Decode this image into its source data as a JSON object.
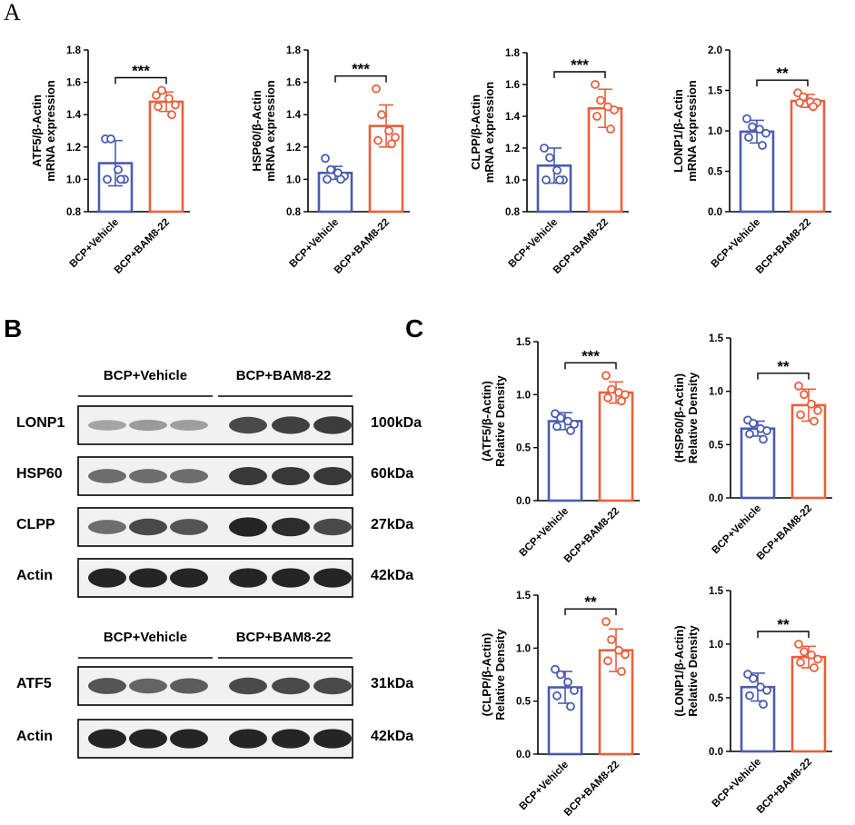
{
  "panels": {
    "a": "A",
    "b": "B",
    "c": "C"
  },
  "colors": {
    "vehicle": "#4a5bb0",
    "treatment": "#e8603c",
    "axis": "#000000",
    "blot_bg": "#f1f1f1",
    "band": "#1c1c1c"
  },
  "blot": {
    "groups": [
      "BCP+Vehicle",
      "BCP+BAM8-22"
    ],
    "section1": [
      {
        "label": "LONP1",
        "size": "100kDa",
        "vehicle": [
          0.25,
          0.3,
          0.28
        ],
        "treatment": [
          0.75,
          0.8,
          0.82
        ]
      },
      {
        "label": "HSP60",
        "size": "60kDa",
        "vehicle": [
          0.55,
          0.55,
          0.55
        ],
        "treatment": [
          0.85,
          0.85,
          0.85
        ]
      },
      {
        "label": "CLPP",
        "size": "27kDa",
        "vehicle": [
          0.55,
          0.75,
          0.7
        ],
        "treatment": [
          0.95,
          0.9,
          0.75
        ]
      },
      {
        "label": "Actin",
        "size": "42kDa",
        "vehicle": [
          0.95,
          0.95,
          0.95
        ],
        "treatment": [
          0.95,
          0.95,
          0.95
        ]
      }
    ],
    "section2": [
      {
        "label": "ATF5",
        "size": "31kDa",
        "vehicle": [
          0.7,
          0.6,
          0.65
        ],
        "treatment": [
          0.75,
          0.75,
          0.75
        ]
      },
      {
        "label": "Actin",
        "size": "42kDa",
        "vehicle": [
          0.95,
          0.95,
          0.95
        ],
        "treatment": [
          0.95,
          0.95,
          0.95
        ]
      }
    ]
  },
  "chart_data": [
    {
      "type": "bar",
      "title": "",
      "ylabel": [
        "ATF5/β-Actin",
        "mRNA expression"
      ],
      "categories": [
        "BCP+Vehicle",
        "BCP+BAM8-22"
      ],
      "ylim": [
        0.8,
        1.8
      ],
      "yticks": [
        0.8,
        1.0,
        1.2,
        1.4,
        1.6,
        1.8
      ],
      "tick_format": "1",
      "means": [
        1.1,
        1.48
      ],
      "errors": [
        0.14,
        0.06
      ],
      "points": [
        [
          1.25,
          1.25,
          1.06,
          1.0,
          1.0,
          1.0
        ],
        [
          1.52,
          1.55,
          1.5,
          1.46,
          1.45,
          1.4
        ]
      ],
      "significance": "***"
    },
    {
      "type": "bar",
      "title": "",
      "ylabel": [
        "HSP60/β-Actin",
        "mRNA expression"
      ],
      "categories": [
        "BCP+Vehicle",
        "BCP+BAM8-22"
      ],
      "ylim": [
        0.8,
        1.8
      ],
      "yticks": [
        0.8,
        1.0,
        1.2,
        1.4,
        1.6,
        1.8
      ],
      "tick_format": "1",
      "means": [
        1.04,
        1.33
      ],
      "errors": [
        0.04,
        0.13
      ],
      "points": [
        [
          1.13,
          1.06,
          1.04,
          1.02,
          1.0,
          1.0
        ],
        [
          1.56,
          1.4,
          1.3,
          1.26,
          1.24,
          1.22
        ]
      ],
      "significance": "***"
    },
    {
      "type": "bar",
      "title": "",
      "ylabel": [
        "CLPP/β-Actin",
        "mRNA expression"
      ],
      "categories": [
        "BCP+Vehicle",
        "BCP+BAM8-22"
      ],
      "ylim": [
        0.8,
        1.8
      ],
      "yticks": [
        0.8,
        1.0,
        1.2,
        1.4,
        1.6,
        1.8
      ],
      "tick_format": "1",
      "means": [
        1.09,
        1.45
      ],
      "errors": [
        0.11,
        0.12
      ],
      "points": [
        [
          1.2,
          1.14,
          1.06,
          1.0,
          1.0,
          1.0
        ],
        [
          1.6,
          1.5,
          1.46,
          1.44,
          1.4,
          1.32
        ]
      ],
      "significance": "***"
    },
    {
      "type": "bar",
      "title": "",
      "ylabel": [
        "LONP1/β-Actin",
        "mRNA expression"
      ],
      "categories": [
        "BCP+Vehicle",
        "BCP+BAM8-22"
      ],
      "ylim": [
        0.0,
        2.0
      ],
      "yticks": [
        0.0,
        0.5,
        1.0,
        1.5,
        2.0
      ],
      "tick_format": "1",
      "means": [
        0.99,
        1.37
      ],
      "errors": [
        0.14,
        0.08
      ],
      "points": [
        [
          1.15,
          1.05,
          1.02,
          0.97,
          0.92,
          0.82
        ],
        [
          1.47,
          1.42,
          1.36,
          1.35,
          1.35,
          1.3
        ]
      ],
      "significance": "**"
    },
    {
      "type": "bar",
      "title": "",
      "ylabel": [
        "(ATF5/β-Actin)",
        "Relative Density"
      ],
      "categories": [
        "BCP+Vehicle",
        "BCP+BAM8-22"
      ],
      "ylim": [
        0.0,
        1.5
      ],
      "yticks": [
        0.0,
        0.5,
        1.0,
        1.5
      ],
      "tick_format": "1",
      "means": [
        0.75,
        1.02
      ],
      "errors": [
        0.08,
        0.1
      ],
      "points": [
        [
          0.82,
          0.78,
          0.75,
          0.72,
          0.7,
          0.66
        ],
        [
          1.18,
          1.05,
          1.02,
          1.0,
          0.97,
          0.94
        ]
      ],
      "significance": "***"
    },
    {
      "type": "bar",
      "title": "",
      "ylabel": [
        "(HSP60/β-Actin)",
        "Relative Density"
      ],
      "categories": [
        "BCP+Vehicle",
        "BCP+BAM8-22"
      ],
      "ylim": [
        0.0,
        1.5
      ],
      "yticks": [
        0.0,
        0.5,
        1.0,
        1.5
      ],
      "tick_format": "1",
      "means": [
        0.65,
        0.87
      ],
      "errors": [
        0.07,
        0.15
      ],
      "points": [
        [
          0.73,
          0.7,
          0.65,
          0.63,
          0.6,
          0.55
        ],
        [
          1.05,
          0.97,
          0.88,
          0.82,
          0.78,
          0.72
        ]
      ],
      "significance": "**"
    },
    {
      "type": "bar",
      "title": "",
      "ylabel": [
        "(CLPP/β-Actin)",
        "Relative Density"
      ],
      "categories": [
        "BCP+Vehicle",
        "BCP+BAM8-22"
      ],
      "ylim": [
        0.0,
        1.5
      ],
      "yticks": [
        0.0,
        0.5,
        1.0,
        1.5
      ],
      "tick_format": "1",
      "means": [
        0.63,
        0.98
      ],
      "errors": [
        0.15,
        0.2
      ],
      "points": [
        [
          0.8,
          0.75,
          0.68,
          0.6,
          0.55,
          0.45
        ],
        [
          1.25,
          1.08,
          0.98,
          0.94,
          0.88,
          0.78
        ]
      ],
      "significance": "**"
    },
    {
      "type": "bar",
      "title": "",
      "ylabel": [
        "(LONP1/β-Actin)",
        "Relative Density"
      ],
      "categories": [
        "BCP+Vehicle",
        "BCP+BAM8-22"
      ],
      "ylim": [
        0.0,
        1.5
      ],
      "yticks": [
        0.0,
        0.5,
        1.0,
        1.5
      ],
      "tick_format": "1",
      "means": [
        0.6,
        0.88
      ],
      "errors": [
        0.13,
        0.1
      ],
      "points": [
        [
          0.72,
          0.68,
          0.6,
          0.57,
          0.52,
          0.44
        ],
        [
          1.0,
          0.93,
          0.9,
          0.86,
          0.83,
          0.78
        ]
      ],
      "significance": "**"
    }
  ]
}
